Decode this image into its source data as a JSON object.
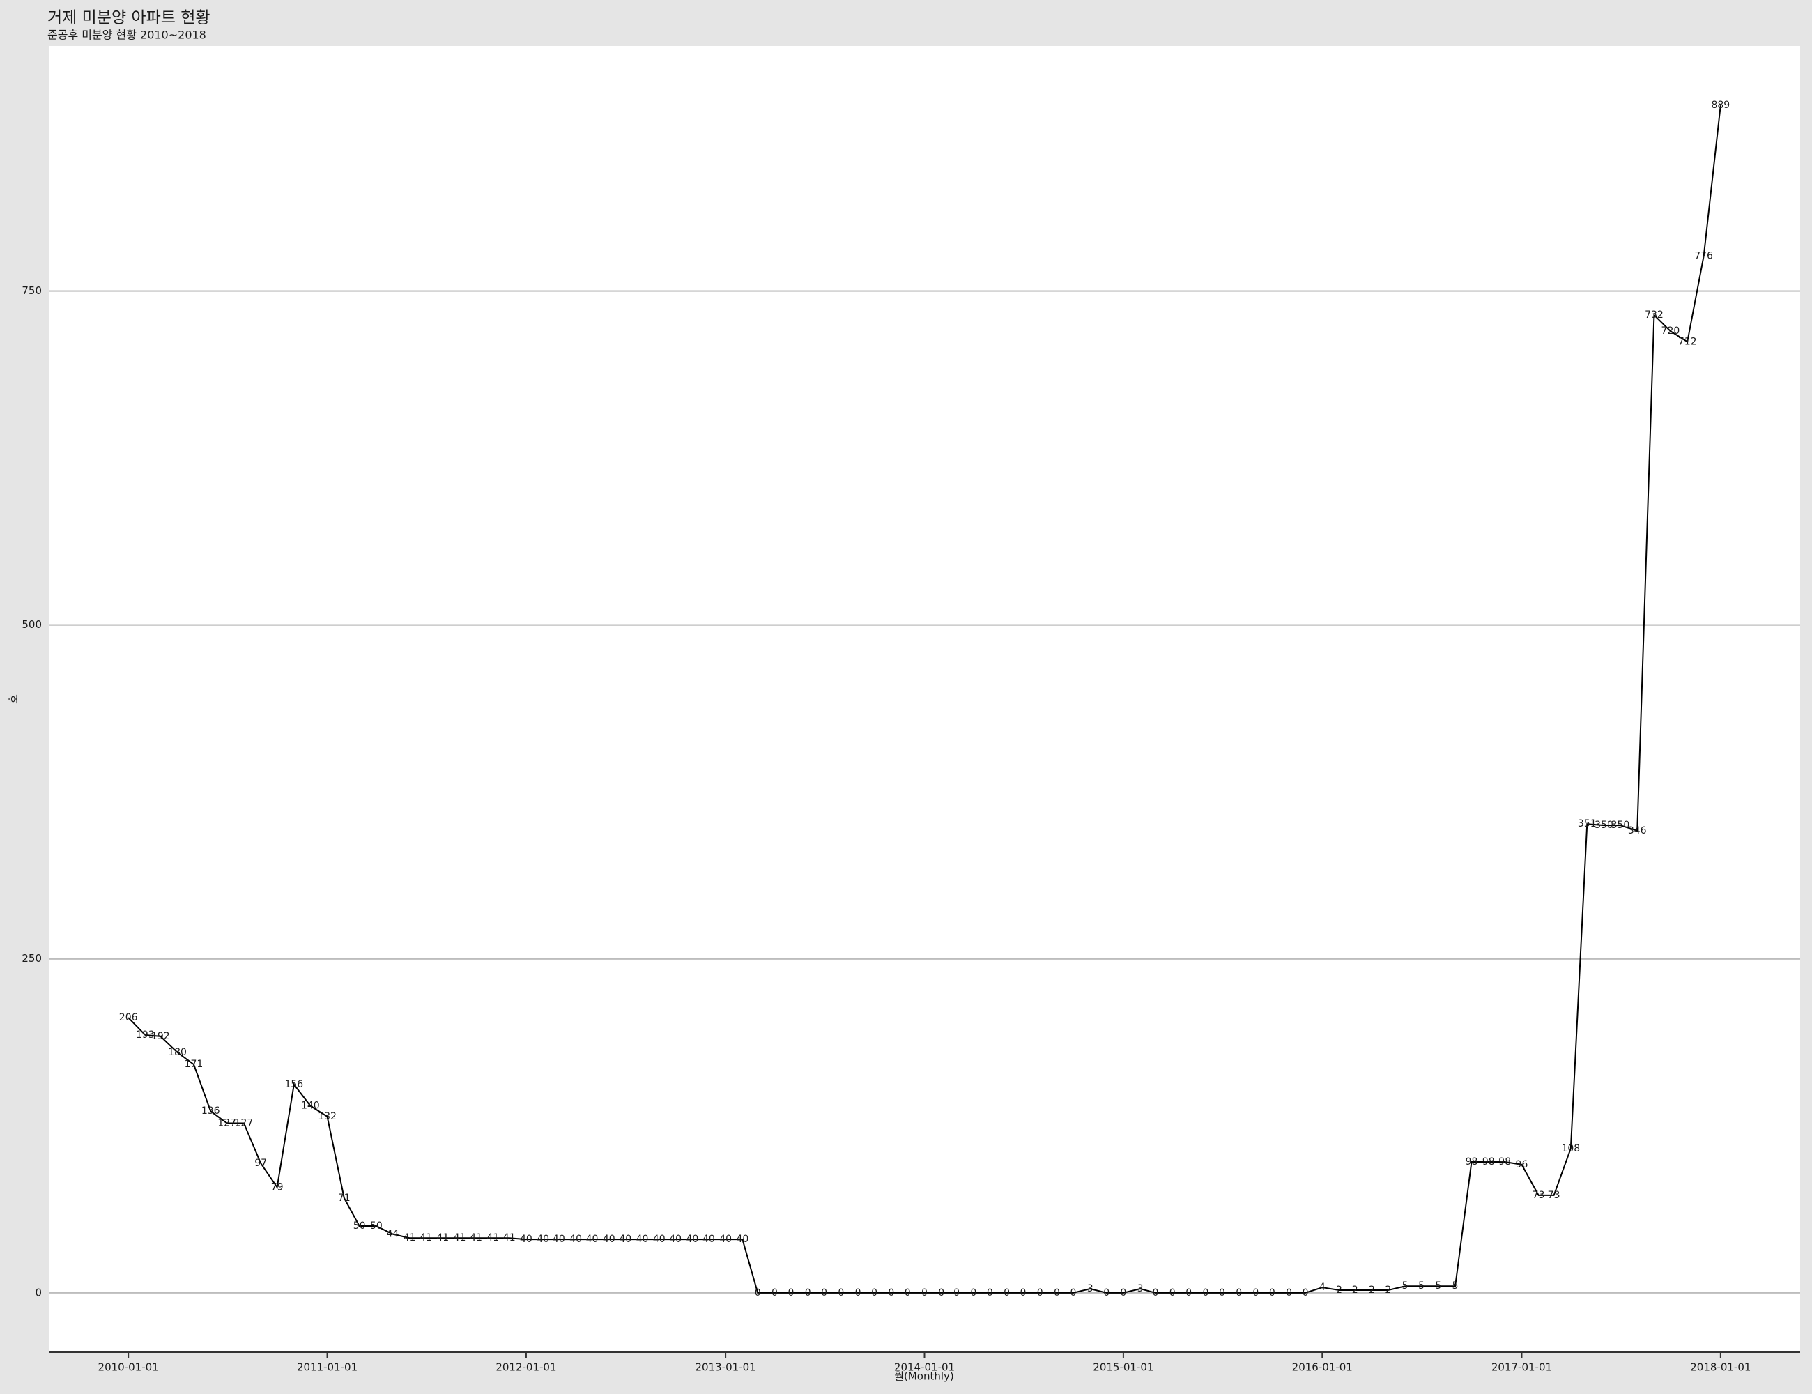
{
  "chart_data": {
    "type": "line",
    "title": "거제 미분양 아파트 현황",
    "subtitle": "준공후 미분양 현황 2010~2018",
    "x_label": "월(Monthly)",
    "y_label": "호",
    "x": [
      "2010-01-01",
      "2010-02-01",
      "2010-03-01",
      "2010-04-01",
      "2010-05-01",
      "2010-06-01",
      "2010-07-01",
      "2010-08-01",
      "2010-09-01",
      "2010-10-01",
      "2010-11-01",
      "2010-12-01",
      "2011-01-01",
      "2011-02-01",
      "2011-03-01",
      "2011-04-01",
      "2011-05-01",
      "2011-06-01",
      "2011-07-01",
      "2011-08-01",
      "2011-09-01",
      "2011-10-01",
      "2011-11-01",
      "2011-12-01",
      "2012-01-01",
      "2012-02-01",
      "2012-03-01",
      "2012-04-01",
      "2012-05-01",
      "2012-06-01",
      "2012-07-01",
      "2012-08-01",
      "2012-09-01",
      "2012-10-01",
      "2012-11-01",
      "2012-12-01",
      "2013-01-01",
      "2013-02-01",
      "2013-03-01",
      "2013-04-01",
      "2013-05-01",
      "2013-06-01",
      "2013-07-01",
      "2013-08-01",
      "2013-09-01",
      "2013-10-01",
      "2013-11-01",
      "2013-12-01",
      "2014-01-01",
      "2014-02-01",
      "2014-03-01",
      "2014-04-01",
      "2014-05-01",
      "2014-06-01",
      "2014-07-01",
      "2014-08-01",
      "2014-09-01",
      "2014-10-01",
      "2014-11-01",
      "2014-12-01",
      "2015-01-01",
      "2015-02-01",
      "2015-03-01",
      "2015-04-01",
      "2015-05-01",
      "2015-06-01",
      "2015-07-01",
      "2015-08-01",
      "2015-09-01",
      "2015-10-01",
      "2015-11-01",
      "2015-12-01",
      "2016-01-01",
      "2016-02-01",
      "2016-03-01",
      "2016-04-01",
      "2016-05-01",
      "2016-06-01",
      "2016-07-01",
      "2016-08-01",
      "2016-09-01",
      "2016-10-01",
      "2016-11-01",
      "2016-12-01",
      "2017-01-01",
      "2017-02-01",
      "2017-03-01",
      "2017-04-01",
      "2017-05-01",
      "2017-06-01",
      "2017-07-01",
      "2017-08-01",
      "2017-09-01",
      "2017-10-01",
      "2017-11-01",
      "2017-12-01",
      "2018-01-01"
    ],
    "series": [
      {
        "name": "호",
        "color": "#000000",
        "values": [
          206,
          193,
          192,
          180,
          171,
          136,
          127,
          127,
          97,
          79,
          156,
          140,
          132,
          71,
          50,
          50,
          44,
          41,
          41,
          41,
          41,
          41,
          41,
          41,
          40,
          40,
          40,
          40,
          40,
          40,
          40,
          40,
          40,
          40,
          40,
          40,
          40,
          40,
          0,
          0,
          0,
          0,
          0,
          0,
          0,
          0,
          0,
          0,
          0,
          0,
          0,
          0,
          0,
          0,
          0,
          0,
          0,
          0,
          3,
          0,
          0,
          3,
          0,
          0,
          0,
          0,
          0,
          0,
          0,
          0,
          0,
          0,
          4,
          2,
          2,
          2,
          2,
          5,
          5,
          5,
          5,
          98,
          98,
          98,
          96,
          73,
          73,
          108,
          351,
          350,
          350,
          346,
          732,
          720,
          712,
          776,
          889
        ]
      }
    ],
    "xlim": [
      "2009-08-08",
      "2018-05-27"
    ],
    "xticks": [
      "2010-01-01",
      "2011-01-01",
      "2012-01-01",
      "2013-01-01",
      "2014-01-01",
      "2015-01-01",
      "2016-01-01",
      "2017-01-01",
      "2018-01-01"
    ],
    "ylim": [
      -44.45,
      933.45
    ],
    "yticks": [
      0,
      250,
      500,
      750
    ],
    "grid": true
  }
}
